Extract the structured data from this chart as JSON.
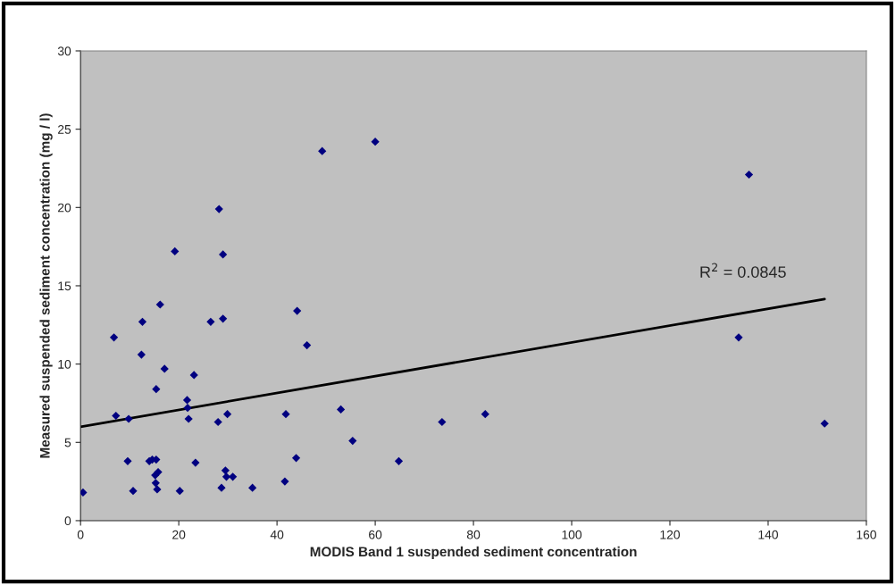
{
  "chart_data": {
    "type": "scatter",
    "xlabel": "MODIS Band 1 suspended sediment concentration",
    "ylabel": "Measured suspended sediment concentration (mg / l)",
    "xlim": [
      0,
      160
    ],
    "xticks": [
      0,
      20,
      40,
      60,
      80,
      100,
      120,
      140,
      160
    ],
    "ylim": [
      0,
      30
    ],
    "yticks": [
      0,
      5,
      10,
      15,
      20,
      25,
      30
    ],
    "grid": false,
    "marker": "diamond",
    "annotations": [
      "R$^{2}$ = 0.0845"
    ],
    "series": [
      {
        "color": "#000080",
        "x": [
          0.5,
          6.8,
          7.2,
          9.8,
          9.6,
          10.7,
          12.4,
          12.6,
          14,
          14.6,
          15.4,
          15.2,
          15.3,
          15.6,
          15.8,
          15.4,
          16.2,
          17.1,
          19.2,
          20.2,
          21.7,
          21.8,
          22,
          23.1,
          23.4,
          26.5,
          28,
          28.2,
          28.7,
          29,
          29,
          29.5,
          29.7,
          29.9,
          31,
          35,
          41.6,
          41.8,
          43.9,
          44.1,
          46.1,
          49.2,
          53,
          55.4,
          60,
          64.8,
          73.6,
          82.4,
          134,
          136.1,
          151.5
        ],
        "values": [
          1.8,
          11.7,
          6.7,
          6.5,
          3.8,
          1.9,
          10.6,
          12.7,
          3.8,
          3.9,
          3.9,
          2.9,
          2.4,
          2.0,
          3.1,
          8.4,
          13.8,
          9.7,
          17.2,
          1.9,
          7.7,
          7.2,
          6.5,
          9.3,
          3.7,
          12.7,
          6.3,
          19.9,
          2.1,
          17,
          12.9,
          3.2,
          2.8,
          6.8,
          2.8,
          2.1,
          2.5,
          6.8,
          4.0,
          13.4,
          11.2,
          23.6,
          7.1,
          5.1,
          24.2,
          3.8,
          6.3,
          6.8,
          11.7,
          22.1,
          6.2
        ]
      },
      {
        "type": "line",
        "color": "#000000",
        "marker": "none",
        "x": [
          0,
          151.5
        ],
        "values": [
          6.0,
          14.15
        ]
      }
    ]
  }
}
